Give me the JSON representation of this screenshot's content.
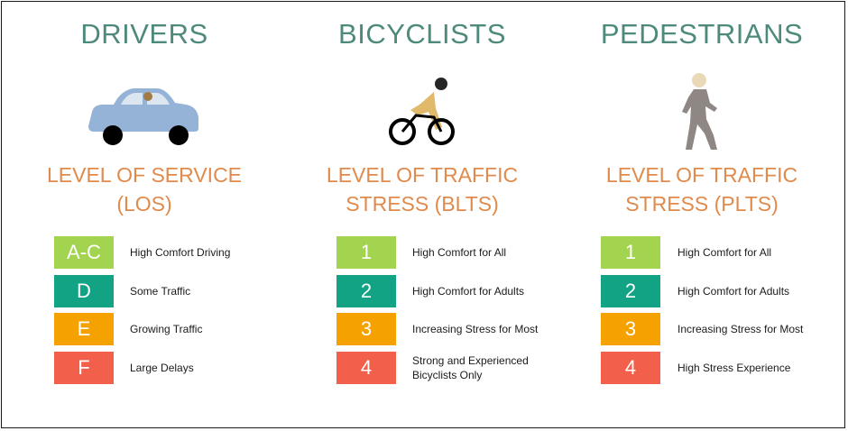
{
  "colors": {
    "title": "#4e8a7c",
    "subtitle": "#e08a4c",
    "level_green_light": "#a3d450",
    "level_teal": "#12a385",
    "level_orange": "#f5a200",
    "level_red": "#f2604b"
  },
  "columns": [
    {
      "title": "DRIVERS",
      "icon": "car-icon",
      "subtitle_line1": "LEVEL OF SERVICE",
      "subtitle_line2": "(LOS)",
      "levels": [
        {
          "badge": "A-C",
          "label": "High Comfort Driving",
          "color": "#a3d450"
        },
        {
          "badge": "D",
          "label": "Some Traffic",
          "color": "#12a385"
        },
        {
          "badge": "E",
          "label": "Growing Traffic",
          "color": "#f5a200"
        },
        {
          "badge": "F",
          "label": "Large Delays",
          "color": "#f2604b"
        }
      ]
    },
    {
      "title": "BICYCLISTS",
      "icon": "bicyclist-icon",
      "subtitle_line1": "LEVEL OF TRAFFIC",
      "subtitle_line2": "STRESS (BLTS)",
      "levels": [
        {
          "badge": "1",
          "label": "High Comfort for All",
          "color": "#a3d450"
        },
        {
          "badge": "2",
          "label": "High Comfort for Adults",
          "color": "#12a385"
        },
        {
          "badge": "3",
          "label": "Increasing Stress for Most",
          "color": "#f5a200"
        },
        {
          "badge": "4",
          "label": "Strong and Experienced Bicyclists Only",
          "color": "#f2604b"
        }
      ]
    },
    {
      "title": "PEDESTRIANS",
      "icon": "pedestrian-icon",
      "subtitle_line1": "LEVEL OF TRAFFIC",
      "subtitle_line2": "STRESS (PLTS)",
      "levels": [
        {
          "badge": "1",
          "label": "High Comfort for All",
          "color": "#a3d450"
        },
        {
          "badge": "2",
          "label": "High Comfort for Adults",
          "color": "#12a385"
        },
        {
          "badge": "3",
          "label": "Increasing Stress for Most",
          "color": "#f5a200"
        },
        {
          "badge": "4",
          "label": "High Stress Experience",
          "color": "#f2604b"
        }
      ]
    }
  ]
}
